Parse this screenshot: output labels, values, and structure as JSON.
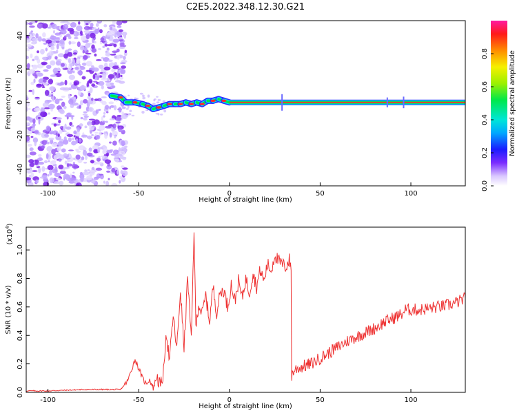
{
  "title": "C2E5.2022.348.12.30.G21",
  "chart_data": [
    {
      "type": "heatmap",
      "xlabel": "Height of straight line (km)",
      "ylabel": "Frequency (Hz)",
      "xlim": [
        -112,
        130
      ],
      "ylim": [
        -50,
        49
      ],
      "x_ticks": [
        -100,
        -50,
        0,
        50,
        100
      ],
      "y_ticks": [
        -40,
        -20,
        0,
        20,
        40
      ],
      "x_tick_labels": [
        "-100",
        "-50",
        "0",
        "50",
        "100"
      ],
      "y_tick_labels": [
        "-40",
        "-20",
        "0",
        "20",
        "40"
      ],
      "noise_region": {
        "x_range": [
          -112,
          -57
        ],
        "y_range": [
          -50,
          49
        ]
      },
      "ridge": {
        "x": [
          -65,
          -60,
          -57,
          -52,
          -48,
          -45,
          -42,
          -39,
          -36,
          -33,
          -30,
          -27,
          -24,
          -21,
          -18,
          -15,
          -12,
          -9,
          -6,
          -3,
          0,
          130
        ],
        "y": [
          4,
          3,
          0,
          0,
          -1,
          -2,
          -4,
          -3,
          -2,
          -1,
          -1,
          -1,
          0,
          -1,
          0,
          -1,
          1,
          1,
          2,
          1,
          0,
          0
        ]
      },
      "colorbar": {
        "label": "Normalized spectral amplitude",
        "range": [
          0,
          1
        ],
        "ticks": [
          0.0,
          0.2,
          0.4,
          0.6,
          0.8
        ],
        "tick_labels": [
          "0.0",
          "0.2",
          "0.4",
          "0.6",
          "0.8"
        ]
      },
      "grid": false
    },
    {
      "type": "line",
      "xlabel": "Height of straight line (km)",
      "ylabel": "SNR (10 * v/v)",
      "y_scale_note": "(x10",
      "y_scale_exp": "4",
      "y_scale_close": ")",
      "xlim": [
        -112,
        130
      ],
      "ylim": [
        0,
        1.16
      ],
      "x_ticks": [
        -100,
        -50,
        0,
        50,
        100
      ],
      "y_ticks": [
        0.0,
        0.2,
        0.4,
        0.6,
        0.8,
        1.0
      ],
      "x_tick_labels": [
        "-100",
        "-50",
        "0",
        "50",
        "100"
      ],
      "y_tick_labels": [
        "0.0",
        "0.2",
        "0.4",
        "0.6",
        "0.8",
        "1.0"
      ],
      "color": "#ee3333",
      "series": [
        {
          "x": [
            -112,
            -100,
            -80,
            -60,
            -56,
            -54,
            -52,
            -50,
            -48,
            -46,
            -44,
            -42,
            -40,
            -38,
            -36,
            -35,
            -33,
            -31,
            -29,
            -27,
            -25,
            -23,
            -21,
            -19.5,
            -18.5,
            -17,
            -15,
            -13,
            -11,
            -9,
            -7,
            -5,
            -3,
            -1,
            1,
            3,
            5,
            7,
            9,
            11,
            13,
            15,
            17,
            19,
            21,
            23,
            25,
            27,
            29,
            31,
            33,
            34,
            34.3,
            36,
            40,
            45,
            50,
            55,
            60,
            65,
            70,
            75,
            80,
            85,
            90,
            95,
            97,
            100,
            105,
            110,
            115,
            120,
            125,
            130
          ],
          "y": [
            0.01,
            0.01,
            0.02,
            0.02,
            0.08,
            0.16,
            0.23,
            0.17,
            0.1,
            0.06,
            0.09,
            0.03,
            0.11,
            0.04,
            0.16,
            0.44,
            0.22,
            0.54,
            0.3,
            0.72,
            0.3,
            0.82,
            0.35,
            1.16,
            0.45,
            0.62,
            0.55,
            0.68,
            0.5,
            0.74,
            0.56,
            0.7,
            0.72,
            0.6,
            0.76,
            0.64,
            0.78,
            0.66,
            0.8,
            0.7,
            0.84,
            0.74,
            0.86,
            0.78,
            0.9,
            0.85,
            0.97,
            0.92,
            0.9,
            0.88,
            0.93,
            0.86,
            0.12,
            0.16,
            0.18,
            0.2,
            0.24,
            0.28,
            0.32,
            0.36,
            0.39,
            0.42,
            0.45,
            0.49,
            0.52,
            0.55,
            0.58,
            0.58,
            0.58,
            0.59,
            0.6,
            0.61,
            0.63,
            0.66
          ]
        }
      ],
      "grid": false
    }
  ]
}
